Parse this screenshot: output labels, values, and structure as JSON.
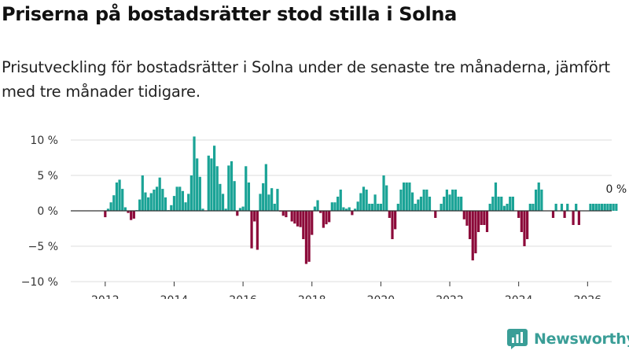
{
  "header": {
    "title": "Priserna på bostadsrätter stod stilla i Solna",
    "subtitle": "Prisutveckling för bostadsrätter i Solna under de senaste tre månaderna, jämfört med tre månader tidigare."
  },
  "brand": {
    "name": "Newsworthy",
    "color": "#3a9e97"
  },
  "colors": {
    "positive": "#1aa396",
    "negative": "#8c0a3a",
    "grid": "#dddddd",
    "zero_line": "#333333"
  },
  "chart_data": {
    "type": "bar",
    "ylim": [
      -10,
      10
    ],
    "xlim": [
      2011.0,
      2026.7
    ],
    "y_ticks": [
      {
        "value": 10,
        "label": "10 %"
      },
      {
        "value": 5,
        "label": "5 %"
      },
      {
        "value": 0,
        "label": "0 %"
      },
      {
        "value": -5,
        "label": "−5 %"
      },
      {
        "value": -10,
        "label": "−10 %"
      }
    ],
    "x_ticks": [
      {
        "value": 2012,
        "label": "2012"
      },
      {
        "value": 2014,
        "label": "2014"
      },
      {
        "value": 2016,
        "label": "2016"
      },
      {
        "value": 2018,
        "label": "2018"
      },
      {
        "value": 2020,
        "label": "2020"
      },
      {
        "value": 2022,
        "label": "2022"
      },
      {
        "value": 2024,
        "label": "2024"
      },
      {
        "value": 2026,
        "label": "2026"
      }
    ],
    "start": {
      "year": 2012,
      "month": 1
    },
    "values": [
      -0.9,
      0.3,
      1.2,
      2.2,
      4.0,
      4.4,
      3.1,
      0.5,
      -0.3,
      -1.3,
      -1.1,
      0.1,
      1.6,
      5.0,
      2.6,
      1.9,
      2.5,
      3.0,
      3.4,
      4.7,
      3.1,
      1.9,
      0.1,
      0.8,
      2.1,
      3.4,
      3.4,
      2.8,
      1.2,
      2.4,
      5.0,
      10.5,
      7.4,
      4.8,
      0.3,
      0.0,
      7.8,
      7.4,
      9.2,
      6.3,
      3.8,
      2.4,
      0.3,
      6.4,
      7.0,
      4.2,
      -0.7,
      0.4,
      0.6,
      6.3,
      4.0,
      -5.3,
      -1.5,
      -5.5,
      2.4,
      3.9,
      6.6,
      2.3,
      3.2,
      1.0,
      3.1,
      -0.1,
      -0.7,
      -0.9,
      -0.1,
      -1.5,
      -1.8,
      -2.2,
      -2.3,
      -4.0,
      -7.5,
      -7.2,
      -3.4,
      0.6,
      1.5,
      -0.3,
      -2.4,
      -1.9,
      -1.6,
      1.2,
      1.2,
      2.0,
      3.0,
      0.5,
      0.3,
      0.5,
      -0.6,
      0.3,
      1.3,
      2.5,
      3.4,
      3.0,
      1.0,
      1.0,
      2.3,
      1.0,
      1.0,
      5.0,
      3.6,
      -1.0,
      -4.0,
      -2.6,
      1.0,
      3.0,
      4.0,
      4.0,
      4.0,
      2.6,
      1.0,
      1.6,
      2.0,
      3.0,
      3.0,
      2.0,
      0.0,
      -1.0,
      0.0,
      1.0,
      2.0,
      3.0,
      2.3,
      3.0,
      3.0,
      2.0,
      2.0,
      -1.2,
      -2.1,
      -4.0,
      -7.0,
      -6.0,
      -3.0,
      -2.0,
      -2.0,
      -3.0,
      1.0,
      2.0,
      4.0,
      2.0,
      2.0,
      0.7,
      1.0,
      2.0,
      2.0,
      0.0,
      -1.0,
      -3.0,
      -5.0,
      -4.0,
      1.0,
      1.0,
      3.0,
      4.0,
      3.0,
      0.0,
      0.0,
      0.0,
      -1.0,
      1.0,
      0.0,
      1.0,
      -1.0,
      1.0,
      0.0,
      -2.0,
      1.0,
      -2.0,
      0.0,
      0.0,
      0.0,
      1.0,
      1.0,
      1.0,
      1.0,
      1.0,
      1.0,
      1.0,
      1.0,
      1.0,
      1.0
    ],
    "annotation": {
      "text": "0 %"
    }
  }
}
